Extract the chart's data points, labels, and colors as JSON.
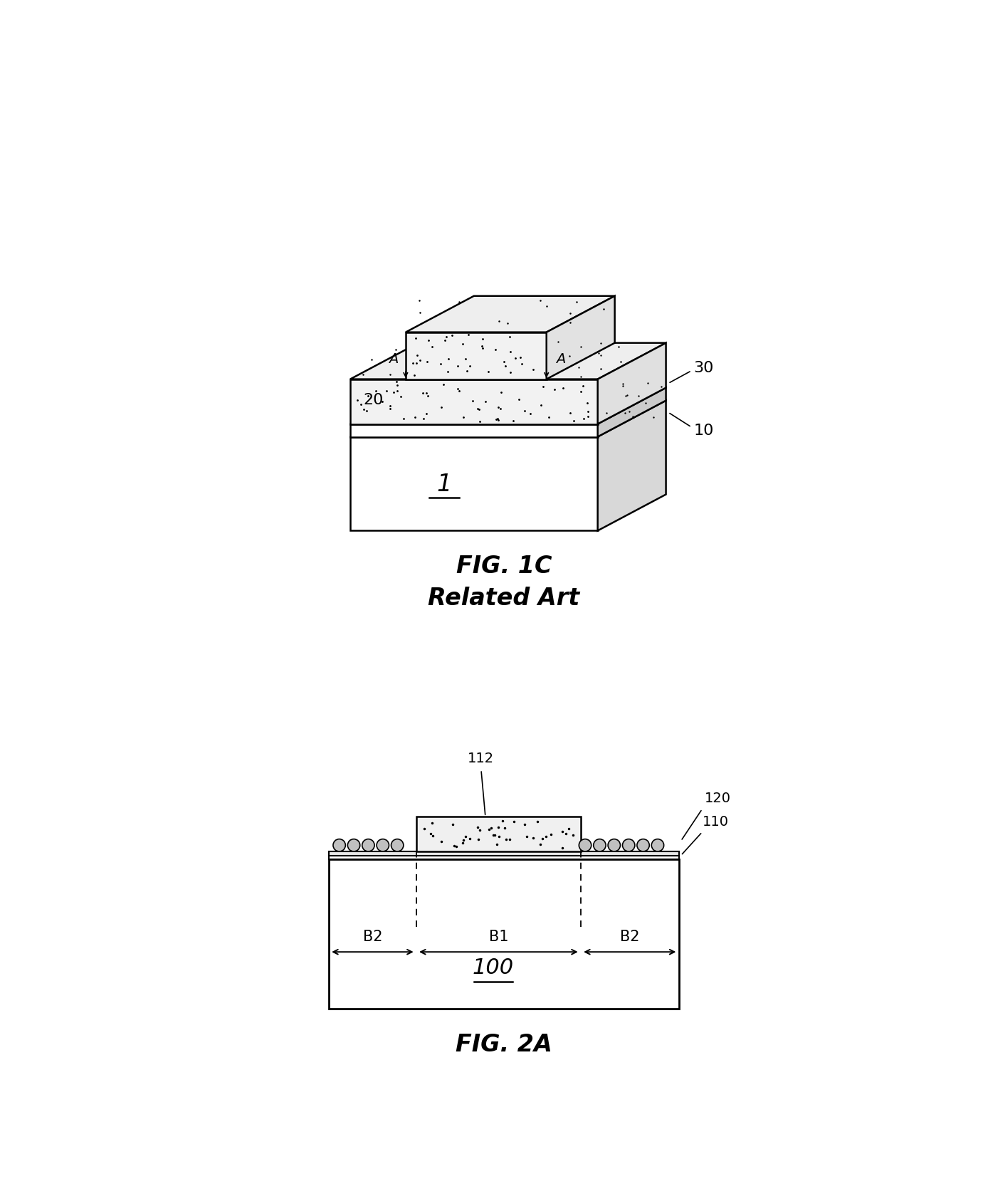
{
  "fig_width": 13.81,
  "fig_height": 16.74,
  "bg_color": "#ffffff",
  "fig1c": {
    "title": "FIG. 1C",
    "subtitle": "Related Art",
    "label_1": "1",
    "label_10": "10",
    "label_20": "20",
    "label_30": "30",
    "label_A1": "A",
    "label_A2": "A"
  },
  "fig2a": {
    "title": "FIG. 2A",
    "label_100": "100",
    "label_110": "110",
    "label_112": "112",
    "label_120": "120",
    "label_B1": "B1",
    "label_B2_left": "B2",
    "label_B2_right": "B2"
  }
}
